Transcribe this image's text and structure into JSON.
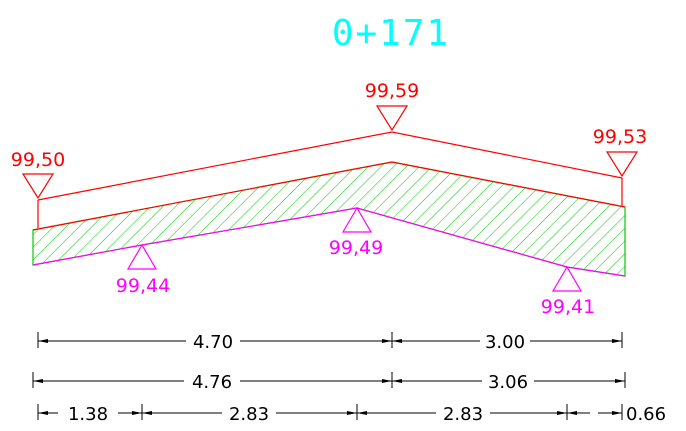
{
  "colors": {
    "background": "#ffffff",
    "title": "#00ffff",
    "design_line": "#ff0000",
    "existing_ground": "#ff00ff",
    "hatch": "#00cc00",
    "dimension": "#000000"
  },
  "section": {
    "station": "0+171"
  },
  "design_levels": {
    "left": "99,50",
    "center": "99,59",
    "right": "99,53"
  },
  "ground_levels": {
    "left": "99,44",
    "center": "99,49",
    "right": "99,41"
  },
  "dimensions": {
    "row1": {
      "left": "4.70",
      "right": "3.00"
    },
    "row2": {
      "left": "4.76",
      "right": "3.06"
    },
    "row3": {
      "seg1": "1.38",
      "seg2": "2.83",
      "seg3": "2.83",
      "seg4": "0.66"
    }
  }
}
